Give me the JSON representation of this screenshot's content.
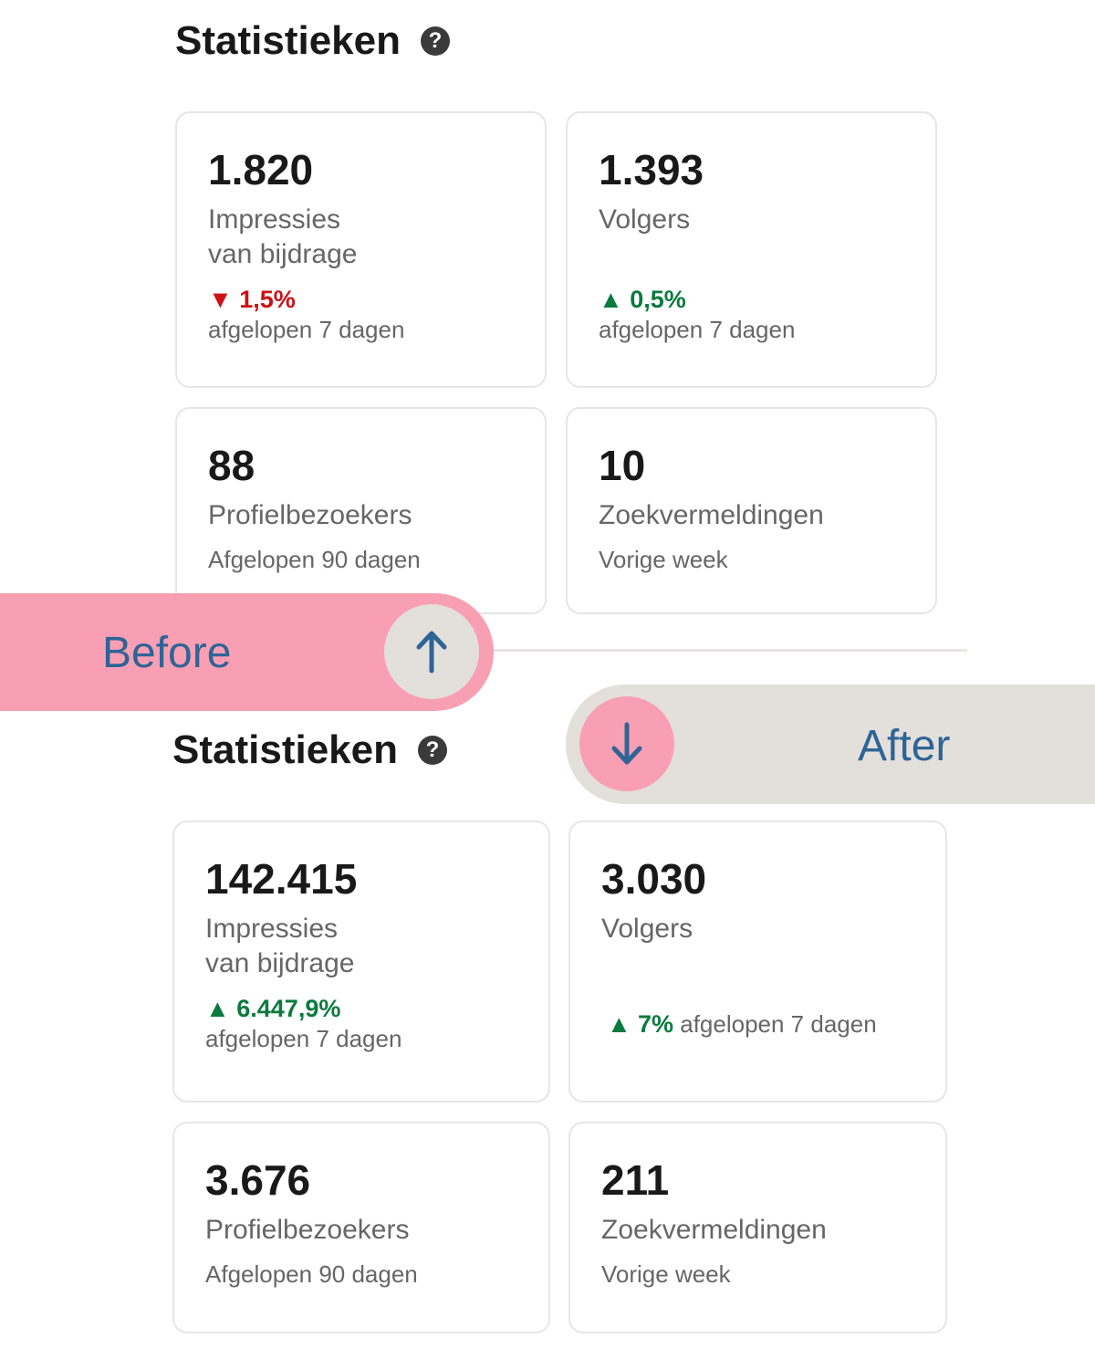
{
  "before": {
    "title": "Statistieken",
    "help_icon": "?",
    "cards": [
      {
        "value": "1.820",
        "label1": "Impressies",
        "label2": "van bijdrage",
        "change": "1,5%",
        "direction": "down",
        "period": "afgelopen 7 dagen"
      },
      {
        "value": "1.393",
        "label1": "Volgers",
        "change": "0,5%",
        "direction": "up",
        "period": "afgelopen 7 dagen"
      },
      {
        "value": "88",
        "label1": "Profielbezoekers",
        "period": "Afgelopen 90 dagen"
      },
      {
        "value": "10",
        "label1": "Zoekvermeldingen",
        "period": "Vorige week"
      }
    ]
  },
  "after": {
    "title": "Statistieken",
    "help_icon": "?",
    "cards": [
      {
        "value": "142.415",
        "label1": "Impressies",
        "label2": "van bijdrage",
        "change": "6.447,9%",
        "direction": "up",
        "period": "afgelopen 7 dagen"
      },
      {
        "value": "3.030",
        "label1": "Volgers",
        "change": "7%",
        "direction": "up",
        "period": "afgelopen 7 dagen"
      },
      {
        "value": "3.676",
        "label1": "Profielbezoekers",
        "period": "Afgelopen 90 dagen"
      },
      {
        "value": "211",
        "label1": "Zoekvermeldingen",
        "period": "Vorige week"
      }
    ]
  },
  "labels": {
    "before": "Before",
    "after": "After"
  },
  "colors": {
    "pink": "#f99fb4",
    "grey": "#e3e0db",
    "blue": "#2f6496",
    "green": "#0a7a3e",
    "red": "#cc1016"
  }
}
